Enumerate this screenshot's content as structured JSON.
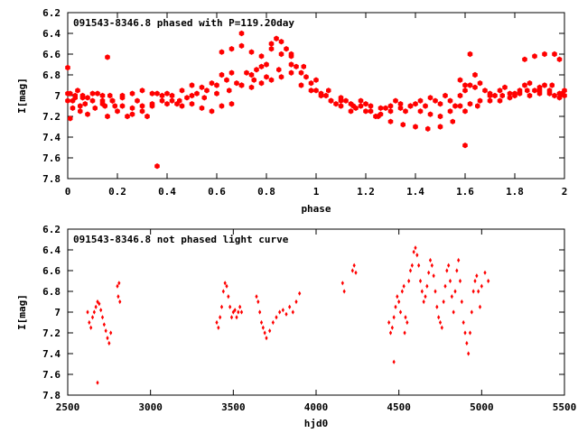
{
  "colors": {
    "points": "#ff0000",
    "axes": "#000000",
    "background": "#ffffff"
  },
  "chart_data": [
    {
      "type": "scatter",
      "title": "091543-8346.8 phased with P=119.20day",
      "xlabel": "phase",
      "ylabel": "I[mag]",
      "xlim": [
        0,
        2
      ],
      "ylim": [
        6.2,
        7.8
      ],
      "y_inverted": true,
      "grid": false,
      "x_ticks": [
        0,
        0.2,
        0.4,
        0.6,
        0.8,
        1,
        1.2,
        1.4,
        1.6,
        1.8,
        2
      ],
      "x_tick_labels": [
        "0",
        "0.2",
        "0.4",
        "0.6",
        "0.8",
        "1",
        "1.2",
        "1.4",
        "1.6",
        "1.8",
        "2"
      ],
      "y_ticks": [
        6.2,
        6.4,
        6.6,
        6.8,
        7,
        7.2,
        7.4,
        7.6,
        7.8
      ],
      "y_tick_labels": [
        "6.2",
        "6.4",
        "6.6",
        "6.8",
        "7",
        "7.2",
        "7.4",
        "7.6",
        "7.8"
      ],
      "marker": "filled-hexagon",
      "series": [
        {
          "x": [
            0.0,
            0.01,
            0.02,
            0.03,
            0.04,
            0.05,
            0.06,
            0.07,
            0.08,
            0.1,
            0.12,
            0.14,
            0.15,
            0.16,
            0.17,
            0.18,
            0.19,
            0.2,
            0.22,
            0.24,
            0.26,
            0.28,
            0.3,
            0.32,
            0.34,
            0.36,
            0.38,
            0.4,
            0.42,
            0.44,
            0.46,
            0.48,
            0.5,
            0.52,
            0.54,
            0.56,
            0.58,
            0.6,
            0.62,
            0.64,
            0.66,
            0.68,
            0.7,
            0.72,
            0.74,
            0.76,
            0.78,
            0.8,
            0.82,
            0.84,
            0.86,
            0.88,
            0.9,
            0.92,
            0.94,
            0.96,
            0.98,
            1.0,
            1.02,
            1.04,
            1.06,
            1.08,
            1.1,
            1.12,
            1.14,
            1.16,
            1.18,
            1.2,
            1.22,
            1.24,
            1.26,
            1.28,
            1.3,
            1.32,
            1.34,
            1.36,
            1.38,
            1.4,
            1.42,
            1.44,
            1.46,
            1.48,
            1.5,
            1.52,
            1.54,
            1.56,
            1.58,
            1.6,
            1.62,
            1.64,
            1.66,
            1.68,
            1.7,
            1.72,
            1.74,
            1.76,
            1.78,
            1.8,
            1.82,
            1.84,
            1.86,
            1.88,
            1.9,
            1.92,
            1.94,
            1.96,
            1.98,
            2.0,
            0.0,
            0.02,
            0.05,
            0.08,
            0.11,
            0.14,
            0.18,
            0.22,
            0.26,
            0.3,
            0.34,
            0.38,
            0.42,
            0.46,
            0.5,
            0.54,
            0.58,
            0.62,
            0.66,
            0.7,
            0.74,
            0.78,
            0.82,
            0.86,
            0.9,
            0.94,
            0.98,
            1.02,
            1.06,
            1.1,
            1.14,
            1.18,
            1.22,
            1.26,
            1.3,
            1.34,
            1.38,
            1.42,
            1.46,
            1.5,
            1.54,
            1.58,
            1.62,
            1.66,
            1.7,
            1.74,
            1.78,
            1.82,
            1.86,
            1.9,
            1.94,
            1.98,
            0.0,
            0.03,
            0.06,
            0.1,
            0.14,
            0.18,
            0.22,
            0.26,
            0.3,
            0.34,
            0.4,
            0.45,
            0.5,
            0.55,
            0.6,
            0.65,
            0.7,
            0.75,
            0.8,
            0.85,
            0.9,
            0.95,
            1.0,
            1.05,
            1.1,
            1.15,
            1.2,
            1.25,
            1.3,
            1.35,
            1.4,
            1.45,
            1.5,
            1.55,
            1.6,
            1.65,
            1.7,
            1.75,
            1.8,
            1.85,
            1.9,
            1.95,
            2.0,
            0.16,
            0.36,
            0.62,
            0.66,
            0.7,
            0.74,
            0.78,
            0.82,
            0.86,
            0.9,
            1.58,
            1.6,
            1.62,
            1.64,
            1.84,
            1.88,
            1.92,
            1.96,
            1.98,
            1.6,
            0.01,
            1.99
          ],
          "y": [
            6.73,
            6.98,
            7.05,
            7.02,
            6.95,
            7.1,
            7.0,
            7.08,
            7.02,
            7.05,
            6.98,
            7.05,
            7.1,
            7.2,
            7.0,
            7.05,
            7.1,
            7.15,
            7.02,
            7.2,
            7.18,
            7.05,
            7.1,
            7.2,
            7.08,
            6.98,
            7.05,
            6.98,
            7.0,
            7.08,
            6.95,
            7.02,
            6.9,
            6.98,
            6.92,
            6.95,
            6.88,
            6.9,
            6.8,
            6.85,
            6.78,
            6.88,
            6.4,
            6.78,
            6.8,
            6.75,
            6.72,
            6.7,
            6.5,
            6.45,
            6.48,
            6.55,
            6.6,
            6.72,
            6.78,
            6.82,
            6.88,
            6.95,
            6.98,
            7.0,
            7.05,
            7.08,
            7.1,
            7.05,
            7.15,
            7.12,
            7.1,
            7.08,
            7.15,
            7.2,
            7.18,
            7.12,
            7.1,
            7.05,
            7.08,
            7.15,
            7.1,
            7.08,
            7.05,
            7.1,
            7.02,
            7.05,
            7.08,
            7.0,
            7.05,
            7.1,
            7.0,
            6.95,
            6.9,
            6.92,
            6.88,
            6.95,
            6.98,
            7.0,
            6.95,
            6.92,
            6.98,
            7.0,
            6.95,
            6.9,
            6.88,
            6.95,
            6.98,
            6.9,
            6.95,
            7.0,
            6.98,
            7.0,
            7.05,
            7.12,
            7.15,
            7.18,
            7.12,
            7.08,
            7.05,
            7.0,
            6.98,
            6.95,
            6.98,
            7.0,
            7.05,
            7.1,
            7.08,
            7.12,
            7.15,
            7.1,
            7.08,
            6.9,
            6.92,
            6.88,
            6.85,
            6.82,
            6.78,
            6.9,
            6.95,
            7.0,
            7.05,
            7.02,
            7.08,
            7.05,
            7.1,
            7.12,
            7.15,
            7.12,
            7.1,
            7.15,
            7.18,
            7.2,
            7.15,
            7.1,
            7.08,
            7.05,
            7.0,
            7.05,
            7.02,
            6.98,
            7.0,
            6.95,
            6.98,
            7.02,
            6.98,
            7.0,
            7.02,
            6.98,
            7.0,
            7.05,
            7.1,
            7.12,
            7.15,
            7.1,
            7.08,
            7.05,
            7.0,
            7.02,
            6.98,
            6.95,
            6.9,
            6.85,
            6.82,
            6.75,
            6.7,
            6.72,
            6.85,
            6.95,
            7.05,
            7.1,
            7.15,
            7.2,
            7.25,
            7.28,
            7.3,
            7.32,
            7.3,
            7.25,
            7.15,
            7.1,
            7.05,
            7.0,
            6.98,
            6.95,
            6.92,
            6.9,
            6.95,
            6.63,
            7.68,
            6.58,
            6.55,
            6.52,
            6.58,
            6.62,
            6.55,
            6.6,
            6.62,
            6.85,
            7.48,
            6.6,
            6.8,
            6.65,
            6.62,
            6.6,
            6.6,
            6.65,
            6.9,
            7.22,
            6.98
          ]
        }
      ]
    },
    {
      "type": "scatter",
      "title": "091543-8346.8 not phased light curve",
      "xlabel": "hjd0",
      "ylabel": "I[mag]",
      "xlim": [
        2500,
        5500
      ],
      "ylim": [
        6.2,
        7.8
      ],
      "y_inverted": true,
      "grid": false,
      "x_ticks": [
        2500,
        3000,
        3500,
        4000,
        4500,
        5000,
        5500
      ],
      "x_tick_labels": [
        "2500",
        "3000",
        "3500",
        "4000",
        "4500",
        "5000",
        "5500"
      ],
      "y_ticks": [
        6.2,
        6.4,
        6.6,
        6.8,
        7,
        7.2,
        7.4,
        7.6,
        7.8
      ],
      "y_tick_labels": [
        "6.2",
        "6.4",
        "6.6",
        "6.8",
        "7",
        "7.2",
        "7.4",
        "7.6",
        "7.8"
      ],
      "marker": "filled-diamond",
      "series": [
        {
          "x": [
            2620,
            2630,
            2640,
            2650,
            2660,
            2670,
            2680,
            2690,
            2700,
            2710,
            2720,
            2730,
            2740,
            2750,
            2760,
            2680,
            2800,
            2805,
            2810,
            2815,
            3400,
            3410,
            3420,
            3430,
            3440,
            3450,
            3460,
            3470,
            3480,
            3490,
            3500,
            3510,
            3520,
            3530,
            3540,
            3550,
            3640,
            3650,
            3660,
            3670,
            3680,
            3690,
            3700,
            3720,
            3740,
            3760,
            3780,
            3800,
            3820,
            3840,
            3860,
            3880,
            3900,
            4160,
            4170,
            4220,
            4230,
            4240,
            4440,
            4450,
            4460,
            4470,
            4480,
            4490,
            4500,
            4510,
            4520,
            4530,
            4540,
            4550,
            4560,
            4570,
            4580,
            4590,
            4600,
            4610,
            4620,
            4630,
            4640,
            4650,
            4660,
            4670,
            4680,
            4690,
            4700,
            4710,
            4720,
            4730,
            4740,
            4750,
            4760,
            4770,
            4780,
            4790,
            4800,
            4810,
            4820,
            4830,
            4840,
            4850,
            4860,
            4870,
            4880,
            4890,
            4900,
            4910,
            4920,
            4930,
            4940,
            4950,
            4960,
            4970,
            4980,
            4990,
            5000,
            5020,
            5040,
            4470,
            4535
          ],
          "y": [
            7.0,
            7.1,
            7.15,
            7.05,
            7.0,
            6.95,
            6.9,
            6.92,
            6.98,
            7.05,
            7.12,
            7.18,
            7.25,
            7.3,
            7.2,
            7.68,
            6.75,
            6.85,
            6.72,
            6.9,
            7.1,
            7.15,
            7.05,
            6.95,
            6.8,
            6.72,
            6.75,
            6.85,
            6.95,
            7.05,
            7.0,
            6.98,
            7.05,
            7.0,
            6.95,
            7.0,
            6.85,
            6.9,
            7.0,
            7.1,
            7.15,
            7.2,
            7.25,
            7.18,
            7.1,
            7.05,
            7.0,
            6.98,
            7.02,
            6.95,
            7.0,
            6.9,
            6.82,
            6.72,
            6.8,
            6.6,
            6.55,
            6.62,
            7.1,
            7.2,
            7.15,
            7.05,
            6.95,
            6.85,
            6.9,
            7.0,
            6.8,
            6.75,
            7.05,
            7.1,
            6.7,
            6.6,
            6.55,
            6.42,
            6.38,
            6.45,
            6.55,
            6.7,
            6.8,
            6.9,
            6.85,
            6.75,
            6.62,
            6.5,
            6.55,
            6.65,
            6.8,
            6.95,
            7.05,
            7.1,
            7.15,
            6.9,
            6.75,
            6.6,
            6.55,
            6.7,
            6.85,
            7.0,
            6.8,
            6.6,
            6.5,
            6.7,
            6.9,
            7.1,
            7.2,
            7.3,
            7.4,
            7.2,
            7.0,
            6.8,
            6.7,
            6.65,
            6.8,
            6.95,
            6.75,
            6.62,
            6.7,
            7.48,
            7.2
          ],
          "series_name": ""
        }
      ]
    }
  ]
}
